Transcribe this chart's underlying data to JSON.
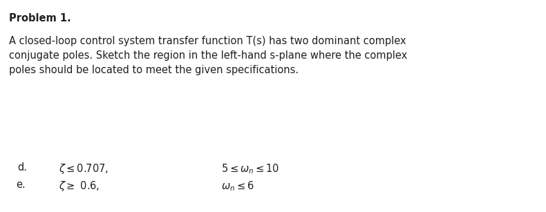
{
  "title": "Problem 1.",
  "line1": "A closed-loop control system transfer function T(s) has two dominant complex",
  "line2": "conjugate poles. Sketch the region in the left-hand s-plane where the complex",
  "line3": "poles should be located to meet the given specifications.",
  "row_d_label": "d.",
  "row_e_label": "e.",
  "bg_color": "#ffffff",
  "text_color": "#231f20",
  "title_fontsize": 10.5,
  "body_fontsize": 10.5,
  "spec_fontsize": 10.5,
  "fig_width": 7.9,
  "fig_height": 3.07,
  "dpi": 100
}
